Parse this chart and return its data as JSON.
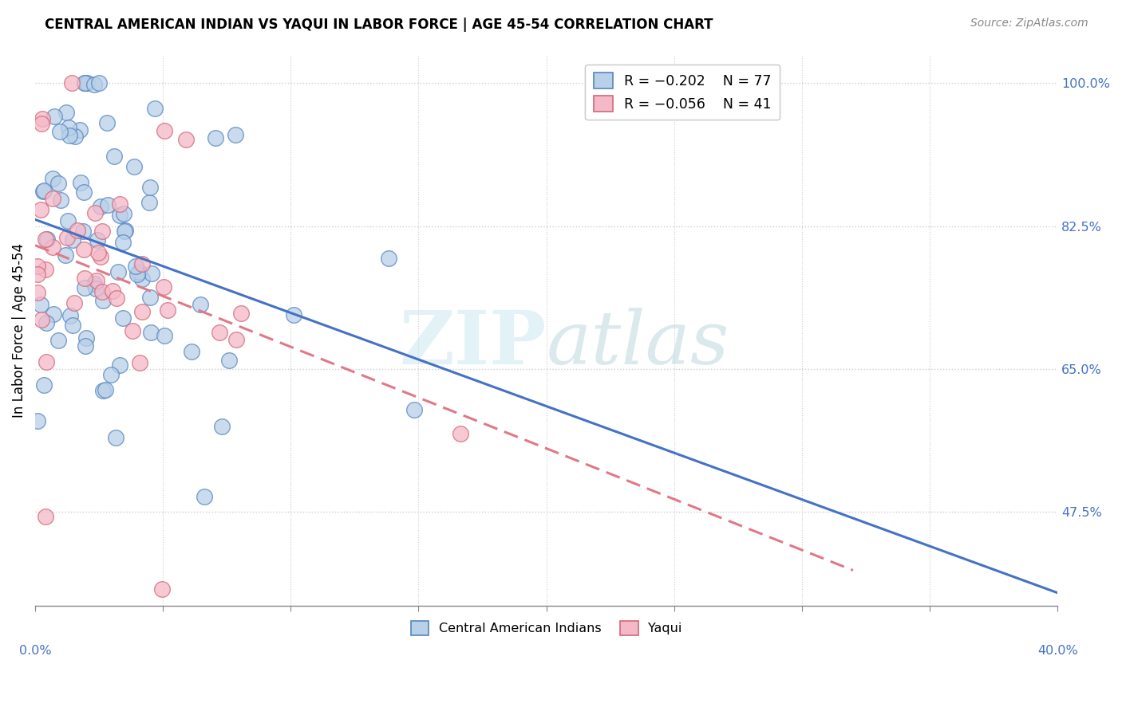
{
  "title": "CENTRAL AMERICAN INDIAN VS YAQUI IN LABOR FORCE | AGE 45-54 CORRELATION CHART",
  "source": "Source: ZipAtlas.com",
  "ylabel": "In Labor Force | Age 45-54",
  "yticks": [
    1.0,
    0.825,
    0.65,
    0.475
  ],
  "ytick_labels": [
    "100.0%",
    "82.5%",
    "65.0%",
    "47.5%"
  ],
  "xmin": 0.0,
  "xmax": 0.4,
  "ymin": 0.36,
  "ymax": 1.035,
  "blue_r": -0.202,
  "blue_n": 77,
  "pink_r": -0.056,
  "pink_n": 41,
  "blue_face": "#b8d0e8",
  "blue_edge": "#5585c0",
  "pink_face": "#f5b8c8",
  "pink_edge": "#d06878",
  "blue_line": "#4472c4",
  "pink_line": "#e07888",
  "watermark_color": "#cce8f0"
}
